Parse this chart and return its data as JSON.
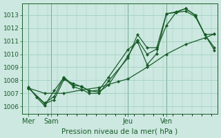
{
  "title": "Pression niveau de la mer( hPa )",
  "bg_color": "#cce8e0",
  "grid_color": "#99ccbb",
  "line_color": "#1a5c2a",
  "tick_label_color": "#1a5c2a",
  "ylabel_values": [
    1006,
    1007,
    1008,
    1009,
    1010,
    1011,
    1012,
    1013
  ],
  "ylim": [
    1005.4,
    1013.9
  ],
  "xlim": [
    -4,
    118
  ],
  "x_ticks": [
    0,
    14,
    62,
    86
  ],
  "x_tick_labels": [
    "Mer",
    "Sam",
    "Jeu",
    "Ven"
  ],
  "x_vlines": [
    0,
    14,
    62,
    86
  ],
  "series": [
    [
      [
        0,
        1007.5
      ],
      [
        5,
        1006.7
      ],
      [
        10,
        1006.05
      ],
      [
        16,
        1007.2
      ],
      [
        22,
        1008.2
      ],
      [
        28,
        1007.5
      ],
      [
        33,
        1007.3
      ],
      [
        38,
        1007.0
      ],
      [
        44,
        1007.0
      ],
      [
        50,
        1007.95
      ],
      [
        62,
        1009.7
      ],
      [
        68,
        1011.5
      ],
      [
        74,
        1010.5
      ],
      [
        80,
        1010.5
      ],
      [
        86,
        1013.1
      ],
      [
        92,
        1013.25
      ],
      [
        98,
        1013.5
      ],
      [
        104,
        1013.0
      ],
      [
        110,
        1011.5
      ],
      [
        116,
        1010.5
      ]
    ],
    [
      [
        0,
        1007.4
      ],
      [
        10,
        1006.2
      ],
      [
        16,
        1006.5
      ],
      [
        22,
        1008.05
      ],
      [
        28,
        1007.75
      ],
      [
        33,
        1007.5
      ],
      [
        38,
        1007.2
      ],
      [
        44,
        1007.1
      ],
      [
        50,
        1007.65
      ],
      [
        62,
        1009.85
      ],
      [
        68,
        1011.1
      ],
      [
        74,
        1010.0
      ],
      [
        80,
        1010.4
      ],
      [
        86,
        1012.2
      ],
      [
        92,
        1013.2
      ],
      [
        98,
        1013.3
      ],
      [
        104,
        1012.9
      ],
      [
        110,
        1011.5
      ],
      [
        116,
        1011.55
      ]
    ],
    [
      [
        0,
        1007.4
      ],
      [
        10,
        1006.25
      ],
      [
        16,
        1006.75
      ],
      [
        22,
        1008.25
      ],
      [
        28,
        1007.6
      ],
      [
        33,
        1007.55
      ],
      [
        38,
        1007.15
      ],
      [
        44,
        1007.25
      ],
      [
        50,
        1008.25
      ],
      [
        62,
        1010.35
      ],
      [
        68,
        1010.95
      ],
      [
        74,
        1009.2
      ],
      [
        80,
        1010.05
      ],
      [
        86,
        1013.1
      ],
      [
        92,
        1013.2
      ],
      [
        98,
        1013.5
      ],
      [
        104,
        1013.0
      ],
      [
        110,
        1011.5
      ],
      [
        116,
        1010.3
      ]
    ],
    [
      [
        0,
        1007.4
      ],
      [
        10,
        1007.0
      ],
      [
        22,
        1007.0
      ],
      [
        33,
        1007.25
      ],
      [
        44,
        1007.45
      ],
      [
        56,
        1007.9
      ],
      [
        62,
        1008.1
      ],
      [
        74,
        1009.0
      ],
      [
        86,
        1010.0
      ],
      [
        98,
        1010.75
      ],
      [
        110,
        1011.25
      ],
      [
        116,
        1011.55
      ]
    ]
  ]
}
